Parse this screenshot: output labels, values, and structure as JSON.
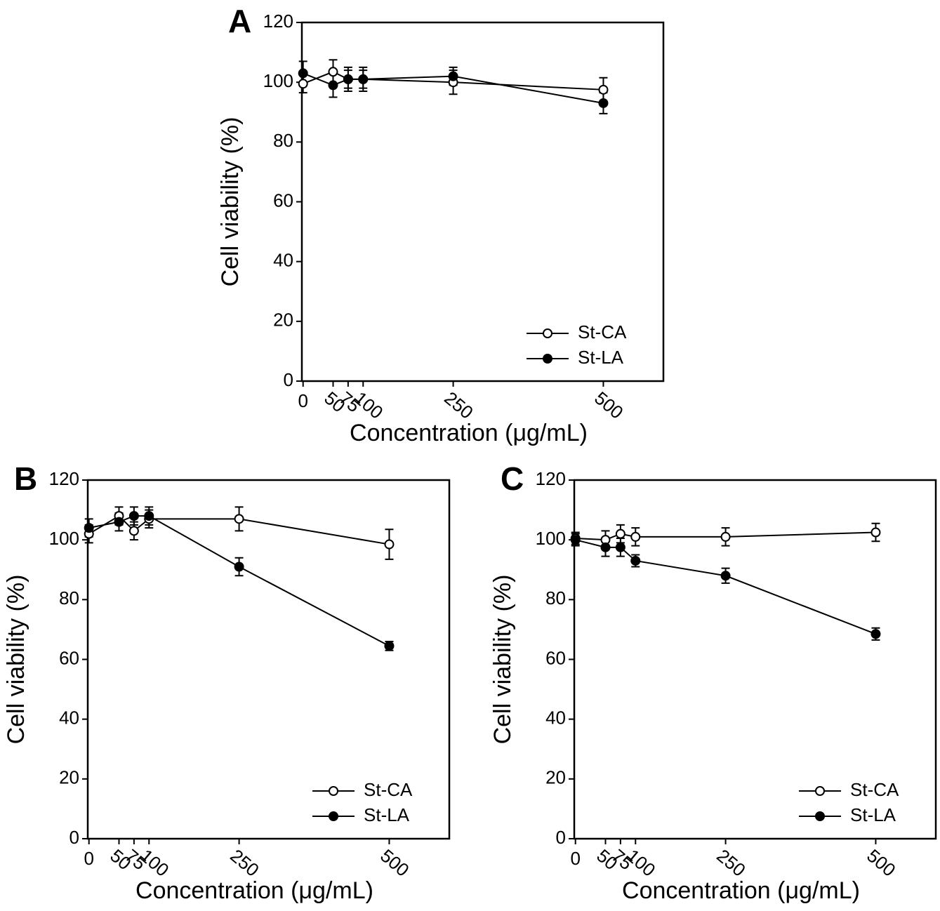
{
  "chart_data": [
    {
      "type": "line",
      "title": "A",
      "xlabel": "Concentration (μg/mL)",
      "ylabel": "Cell viability (%)",
      "x": [
        0,
        50,
        75,
        100,
        250,
        500
      ],
      "xlim": [
        -2,
        600
      ],
      "ylim": [
        0,
        120
      ],
      "xticks": [
        0,
        50,
        75,
        100,
        250,
        500
      ],
      "yticks": [
        0,
        20,
        40,
        60,
        80,
        100,
        120
      ],
      "legend": "lower right",
      "series": [
        {
          "name": "St-CA",
          "color": "#000000",
          "marker": "open",
          "values": [
            99.5,
            103.5,
            101,
            101,
            100,
            97.5
          ],
          "errors": [
            3,
            4,
            4,
            4,
            4,
            4
          ]
        },
        {
          "name": "St-LA",
          "color": "#000000",
          "marker": "filled",
          "values": [
            103,
            99,
            101,
            101,
            102,
            93
          ],
          "errors": [
            4,
            4,
            3,
            3,
            3,
            3.5
          ]
        }
      ]
    },
    {
      "type": "line",
      "title": "B",
      "xlabel": "Concentration (μg/mL)",
      "ylabel": "Cell viability (%)",
      "x": [
        0,
        50,
        75,
        100,
        250,
        500
      ],
      "xlim": [
        -2,
        600
      ],
      "ylim": [
        0,
        120
      ],
      "xticks": [
        0,
        50,
        75,
        100,
        250,
        500
      ],
      "yticks": [
        0,
        20,
        40,
        60,
        80,
        100,
        120
      ],
      "legend": "lower right",
      "series": [
        {
          "name": "St-CA",
          "color": "#000000",
          "marker": "open",
          "values": [
            102,
            108,
            103,
            107,
            107,
            98.5
          ],
          "errors": [
            3,
            3,
            3,
            3,
            4,
            5
          ]
        },
        {
          "name": "St-LA",
          "color": "#000000",
          "marker": "filled",
          "values": [
            104,
            106,
            108,
            108,
            91,
            64.5
          ],
          "errors": [
            3,
            3,
            3,
            3,
            3,
            1.5
          ]
        }
      ]
    },
    {
      "type": "line",
      "title": "C",
      "xlabel": "Concentration (μg/mL)",
      "ylabel": "Cell viability (%)",
      "x": [
        0,
        50,
        75,
        100,
        250,
        500
      ],
      "xlim": [
        -2,
        600
      ],
      "ylim": [
        0,
        120
      ],
      "xticks": [
        0,
        50,
        75,
        100,
        250,
        500
      ],
      "yticks": [
        0,
        20,
        40,
        60,
        80,
        100,
        120
      ],
      "legend": "lower right",
      "series": [
        {
          "name": "St-CA",
          "color": "#000000",
          "marker": "open",
          "values": [
            100.5,
            100,
            102,
            101,
            101,
            102.5
          ],
          "errors": [
            2,
            3,
            3,
            3,
            3,
            3
          ]
        },
        {
          "name": "St-LA",
          "color": "#000000",
          "marker": "filled",
          "values": [
            100,
            97.5,
            97.5,
            93,
            88,
            68.5
          ],
          "errors": [
            2,
            3,
            3,
            2,
            2.5,
            2
          ]
        }
      ]
    }
  ]
}
